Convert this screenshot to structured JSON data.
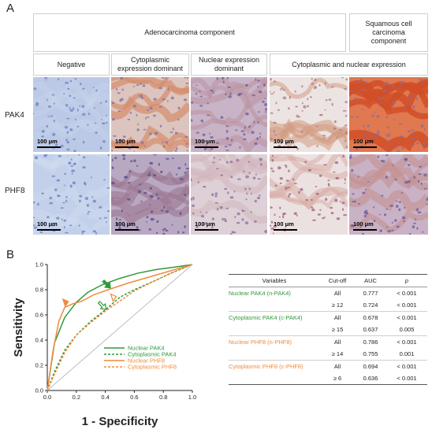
{
  "panel_a": {
    "letter": "A",
    "group_headers": {
      "adeno": "Adenocarcinoma component",
      "squamous": "Squamous cell\ncarcinoma\ncomponent"
    },
    "column_headers": [
      "Negative",
      "Cytoplasmic\nexpression dominant",
      "Nuclear expression\ndominant",
      "Cytoplasmic and nuclear expression"
    ],
    "row_labels": [
      "PAK4",
      "PHF8"
    ],
    "scale_bar_label": "100 μm",
    "colors": {
      "hematoxylin": "#5a78c0",
      "dab": "#d06a38",
      "cell_border": "#cfcfcf"
    }
  },
  "panel_b": {
    "letter": "B",
    "chart_data": {
      "type": "line",
      "xlabel": "1 - Specificity",
      "ylabel": "Sensitivity",
      "xlim": [
        0,
        1
      ],
      "ylim": [
        0,
        1
      ],
      "xticks": [
        "0.0",
        "0.2",
        "0.4",
        "0.6",
        "0.8",
        "1.0"
      ],
      "yticks": [
        "0.0",
        "0.2",
        "0.4",
        "0.6",
        "0.8",
        "1.0"
      ],
      "legend_position": "bottom-right",
      "series": [
        {
          "name": "Nuclear PAK4",
          "color": "#2e9a3a",
          "style": "solid",
          "x": [
            0,
            0.05,
            0.12,
            0.2,
            0.28,
            0.38,
            0.5,
            0.62,
            0.75,
            0.88,
            1.0
          ],
          "y": [
            0,
            0.38,
            0.58,
            0.7,
            0.78,
            0.84,
            0.89,
            0.93,
            0.96,
            0.98,
            1.0
          ]
        },
        {
          "name": "Cytoplasmic PAK4",
          "color": "#2e9a3a",
          "style": "dashed",
          "x": [
            0,
            0.05,
            0.12,
            0.2,
            0.3,
            0.4,
            0.5,
            0.6,
            0.72,
            0.85,
            1.0
          ],
          "y": [
            0,
            0.15,
            0.32,
            0.44,
            0.55,
            0.64,
            0.74,
            0.8,
            0.86,
            0.93,
            1.0
          ]
        },
        {
          "name": "Nuclear PHF8",
          "color": "#f08a3c",
          "style": "solid",
          "x": [
            0,
            0.04,
            0.08,
            0.12,
            0.18,
            0.24,
            0.32,
            0.42,
            0.55,
            0.7,
            0.85,
            1.0
          ],
          "y": [
            0,
            0.32,
            0.55,
            0.66,
            0.69,
            0.71,
            0.76,
            0.8,
            0.85,
            0.9,
            0.95,
            1.0
          ]
        },
        {
          "name": "Cytoplasmic PHF8",
          "color": "#f08a3c",
          "style": "dashed",
          "x": [
            0,
            0.05,
            0.12,
            0.2,
            0.3,
            0.4,
            0.5,
            0.6,
            0.72,
            0.85,
            1.0
          ],
          "y": [
            0,
            0.13,
            0.3,
            0.44,
            0.54,
            0.63,
            0.71,
            0.79,
            0.86,
            0.93,
            1.0
          ]
        },
        {
          "name": "",
          "color": "#b9b9b9",
          "style": "solid",
          "x": [
            0,
            1
          ],
          "y": [
            0,
            1
          ]
        }
      ],
      "annotations": [
        {
          "type": "filled-arrow",
          "color": "#2e9a3a",
          "x": 0.43,
          "y": 0.82
        },
        {
          "type": "open-arrow",
          "color": "#2e9a3a",
          "x": 0.4,
          "y": 0.65
        },
        {
          "type": "filled-arrowhead",
          "color": "#f08a3c",
          "x": 0.14,
          "y": 0.7
        },
        {
          "type": "open-arrowhead",
          "color": "#f08a3c",
          "x": 0.47,
          "y": 0.74
        }
      ]
    },
    "table": {
      "headers": [
        "Variables",
        "Cut-off",
        "AUC",
        "p"
      ],
      "rows": [
        {
          "variable": "Nuclear PAK4 (n-PAK4)",
          "color": "green",
          "cutoff": "All",
          "auc": "0.777",
          "p": "< 0.001"
        },
        {
          "variable": "",
          "color": "",
          "cutoff": "≥ 12",
          "auc": "0.724",
          "p": "< 0.001"
        },
        {
          "variable": "Cytoplasmic PAK4 (c-PAK4)",
          "color": "green",
          "cutoff": "All",
          "auc": "0.678",
          "p": "< 0.001"
        },
        {
          "variable": "",
          "color": "",
          "cutoff": "≥ 15",
          "auc": "0.637",
          "p": "0.005"
        },
        {
          "variable": "Nuclear PHF8 (n-PHF8)",
          "color": "orange",
          "cutoff": "All",
          "auc": "0.786",
          "p": "< 0.001"
        },
        {
          "variable": "",
          "color": "",
          "cutoff": "≥ 14",
          "auc": "0.755",
          "p": "0.001"
        },
        {
          "variable": "Cytoplasmic PHF8 (c-PHF8)",
          "color": "orange",
          "cutoff": "All",
          "auc": "0.694",
          "p": "< 0.001"
        },
        {
          "variable": "",
          "color": "",
          "cutoff": "≥ 6",
          "auc": "0.636",
          "p": "< 0.001"
        }
      ]
    }
  }
}
